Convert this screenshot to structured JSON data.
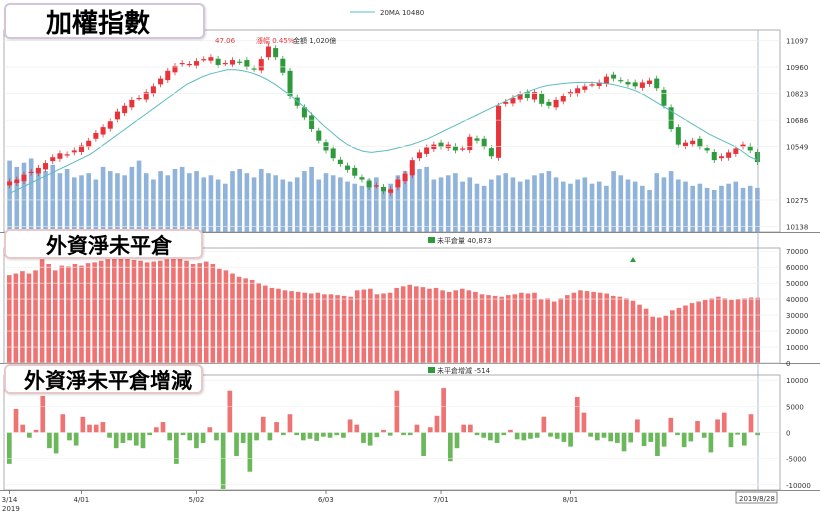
{
  "annotations": {
    "panel1_tag": "加權指數",
    "panel2_tag": "外資淨未平倉",
    "panel3_tag": "外資淨未平倉增減",
    "ma_legend": "20MA 10480",
    "price_info": {
      "value": "47.06",
      "change": "漲幅 0.45%",
      "volume": "金額 1,020億"
    },
    "oi_legend": "未平倉量 40,873",
    "oi_change_legend": "未平倉增減 -514",
    "x_corner_year": "2019",
    "date_box": "2019/8/28"
  },
  "colors": {
    "up": "#e8333a",
    "down": "#2f9a3c",
    "ma": "#5bbcc0",
    "volume": "#8fb3da",
    "oi_bar": "#f07373",
    "oi_pos": "#f07373",
    "oi_neg": "#6ab85a"
  },
  "chart_data": [
    {
      "type": "candlestick",
      "x_ticks": [
        "3/14",
        "4/01",
        "5/02",
        "6/03",
        "7/01",
        "8/01"
      ],
      "x_tick_index": [
        0,
        10,
        26,
        44,
        60,
        78
      ],
      "yticks": [
        11097,
        10960,
        10823,
        10686,
        10549,
        10275,
        10138
      ],
      "ylim": [
        10110,
        11150
      ],
      "series": [
        {
          "name": "20MA",
          "values": [
            10310,
            10330,
            10350,
            10370,
            10390,
            10410,
            10430,
            10450,
            10470,
            10490,
            10510,
            10540,
            10570,
            10600,
            10630,
            10660,
            10690,
            10720,
            10750,
            10780,
            10810,
            10840,
            10870,
            10890,
            10910,
            10925,
            10935,
            10945,
            10945,
            10940,
            10930,
            10915,
            10895,
            10870,
            10840,
            10810,
            10775,
            10740,
            10700,
            10660,
            10625,
            10590,
            10560,
            10540,
            10525,
            10520,
            10525,
            10530,
            10540,
            10550,
            10560,
            10575,
            10590,
            10610,
            10630,
            10650,
            10670,
            10690,
            10710,
            10730,
            10750,
            10770,
            10790,
            10810,
            10825,
            10840,
            10855,
            10865,
            10870,
            10875,
            10878,
            10880,
            10880,
            10878,
            10875,
            10870,
            10860,
            10850,
            10835,
            10815,
            10790,
            10765,
            10740,
            10715,
            10690,
            10665,
            10640,
            10615,
            10595,
            10575,
            10555,
            10530,
            10500,
            10480
          ]
        },
        {
          "name": "close",
          "values": [
            10370,
            10380,
            10405,
            10420,
            10440,
            10465,
            10495,
            10515,
            10510,
            10530,
            10555,
            10580,
            10620,
            10650,
            10680,
            10730,
            10760,
            10790,
            10800,
            10830,
            10860,
            10900,
            10940,
            10965,
            10980,
            10975,
            10990,
            11000,
            11010,
            10970,
            10980,
            10995,
            10985,
            10960,
            10950,
            11000,
            11065,
            11010,
            10930,
            10810,
            10760,
            10700,
            10640,
            10580,
            10530,
            10490,
            10460,
            10430,
            10400,
            10380,
            10340,
            10350,
            10320,
            10330,
            10380,
            10410,
            10480,
            10520,
            10545,
            10560,
            10550,
            10560,
            10530,
            10540,
            10600,
            10580,
            10550,
            10500,
            10760,
            10780,
            10800,
            10820,
            10800,
            10830,
            10770,
            10760,
            10790,
            10810,
            10830,
            10850,
            10860,
            10870,
            10880,
            10910,
            10900,
            10890,
            10870,
            10860,
            10880,
            10890,
            10850,
            10760,
            10640,
            10560,
            10570,
            10580,
            10550,
            10530,
            10480,
            10500,
            10520,
            10540,
            10560,
            10530,
            10470
          ]
        }
      ],
      "volume": [
        68,
        62,
        66,
        70,
        60,
        58,
        64,
        56,
        60,
        52,
        54,
        56,
        50,
        62,
        58,
        56,
        54,
        62,
        68,
        56,
        50,
        58,
        54,
        60,
        62,
        56,
        58,
        52,
        54,
        50,
        46,
        58,
        60,
        56,
        52,
        60,
        56,
        54,
        50,
        48,
        52,
        58,
        62,
        50,
        56,
        54,
        52,
        48,
        46,
        44,
        50,
        52,
        40,
        46,
        54,
        58,
        56,
        60,
        62,
        50,
        52,
        54,
        56,
        48,
        52,
        46,
        44,
        50,
        54,
        56,
        52,
        48,
        50,
        54,
        56,
        58,
        52,
        48,
        46,
        50,
        52,
        46,
        48,
        44,
        58,
        54,
        50,
        48,
        44,
        40,
        56,
        52,
        58,
        50,
        48,
        44,
        46,
        42,
        40,
        44,
        46,
        48,
        42,
        44,
        42
      ]
    },
    {
      "type": "bar",
      "name": "未平倉量",
      "yticks": [
        70000,
        60000,
        50000,
        40000,
        30000,
        20000,
        10000,
        0
      ],
      "ylim": [
        0,
        72000
      ],
      "values": [
        55000,
        56000,
        57500,
        56000,
        58000,
        65000,
        62000,
        58000,
        61000,
        60500,
        62000,
        61000,
        62500,
        63000,
        64000,
        65000,
        67000,
        66000,
        65500,
        64500,
        64000,
        63000,
        63500,
        64000,
        65000,
        66000,
        65500,
        64000,
        62000,
        62500,
        63500,
        62000,
        59000,
        58000,
        56000,
        54000,
        53000,
        52000,
        50000,
        48500,
        47000,
        46500,
        45500,
        45000,
        44500,
        44000,
        43500,
        44000,
        43000,
        43000,
        42500,
        42000,
        41500,
        45500,
        46000,
        46500,
        43000,
        43500,
        44000,
        47000,
        48000,
        49000,
        48000,
        47500,
        46500,
        47000,
        45500,
        44500,
        45500,
        46500,
        45500,
        44500,
        43000,
        42500,
        42000,
        41500,
        42500,
        43000,
        44000,
        43500,
        44000,
        40000,
        40500,
        38500,
        40500,
        42500,
        44000,
        45500,
        45000,
        44500,
        44000,
        43500,
        42000,
        41500,
        40500,
        39000,
        36500,
        34000,
        29000,
        28500,
        29500,
        33000,
        34500,
        36000,
        37500,
        38500,
        39500,
        40500,
        41500,
        40500,
        39500,
        40000,
        40500,
        41000,
        40873
      ]
    },
    {
      "type": "bar",
      "name": "未平倉增減",
      "yticks": [
        10000,
        5000,
        0,
        -5000,
        -10000
      ],
      "ylim": [
        -11000,
        11000
      ],
      "values": [
        -6000,
        4500,
        1500,
        -1000,
        500,
        7000,
        -3000,
        -4000,
        3500,
        -1500,
        -2500,
        3000,
        1500,
        1500,
        2000,
        -1000,
        -3000,
        -2000,
        -1500,
        -2500,
        -3000,
        -500,
        1000,
        2000,
        -1500,
        -6000,
        -500,
        -1500,
        -3000,
        -2000,
        1000,
        -1500,
        -10800,
        8000,
        -4500,
        -2000,
        -7500,
        -1500,
        3000,
        -1500,
        2000,
        -500,
        3500,
        -500,
        -1500,
        -1200,
        -1600,
        -800,
        -1000,
        -500,
        -1000,
        2500,
        1500,
        -2000,
        -2500,
        -900,
        500,
        -600,
        8000,
        -500,
        -500,
        1500,
        -4500,
        1000,
        3200,
        8500,
        -5500,
        -3000,
        1500,
        1500,
        -500,
        -1000,
        -1500,
        -2000,
        -500,
        500,
        -1300,
        -1500,
        -1200,
        -1000,
        3000,
        -800,
        -1200,
        -1800,
        -2700,
        6800,
        3800,
        -800,
        -1500,
        -1000,
        -1700,
        -2000,
        -3600,
        -1900,
        2500,
        -2600,
        -1800,
        -4500,
        -2700,
        2800,
        -500,
        -2800,
        -1700,
        2200,
        -1000,
        -3800,
        2500,
        3800,
        -2800,
        -400,
        -2500,
        3500,
        -514
      ]
    }
  ]
}
